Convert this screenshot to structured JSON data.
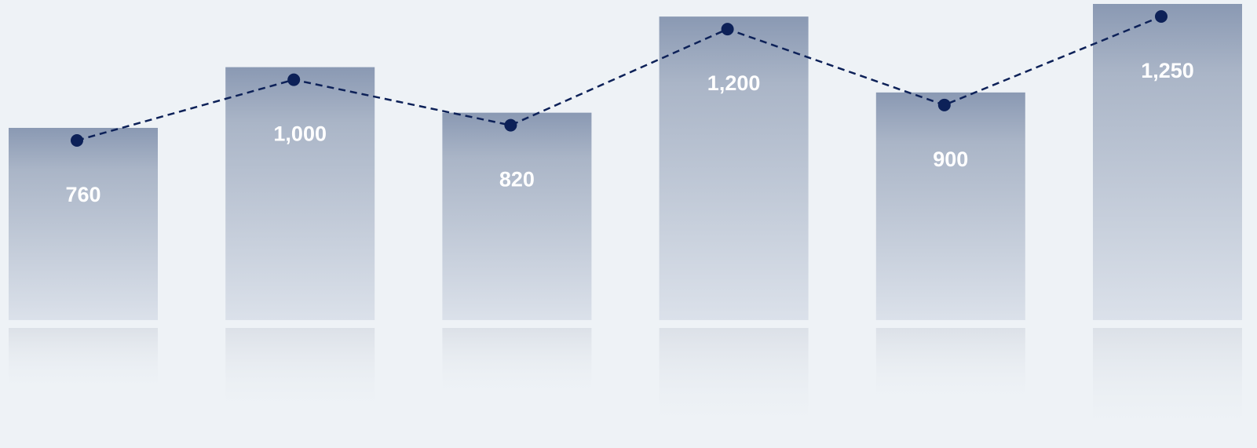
{
  "chart_data": {
    "type": "bar",
    "categories": [
      "",
      "",
      "",
      "",
      "",
      ""
    ],
    "values": [
      760,
      1000,
      820,
      1200,
      900,
      1250
    ],
    "data_labels": [
      "760",
      "1,000",
      "820",
      "1,200",
      "900",
      "1,250"
    ],
    "series": [
      {
        "name": "",
        "type": "bar",
        "values": [
          760,
          1000,
          820,
          1200,
          900,
          1250
        ]
      },
      {
        "name": "",
        "type": "line",
        "style": "dashed",
        "values": [
          760,
          1000,
          820,
          1200,
          900,
          1250
        ]
      }
    ],
    "title": "",
    "xlabel": "",
    "ylabel": "",
    "ylim": [
      0,
      1250
    ],
    "grid": false,
    "legend": "none",
    "reflection": true
  },
  "colors": {
    "background": "#eef2f6",
    "bar_top": "#8a99b3",
    "bar_bottom": "#dbe1ea",
    "line": "#0d2158",
    "label": "#ffffff"
  }
}
